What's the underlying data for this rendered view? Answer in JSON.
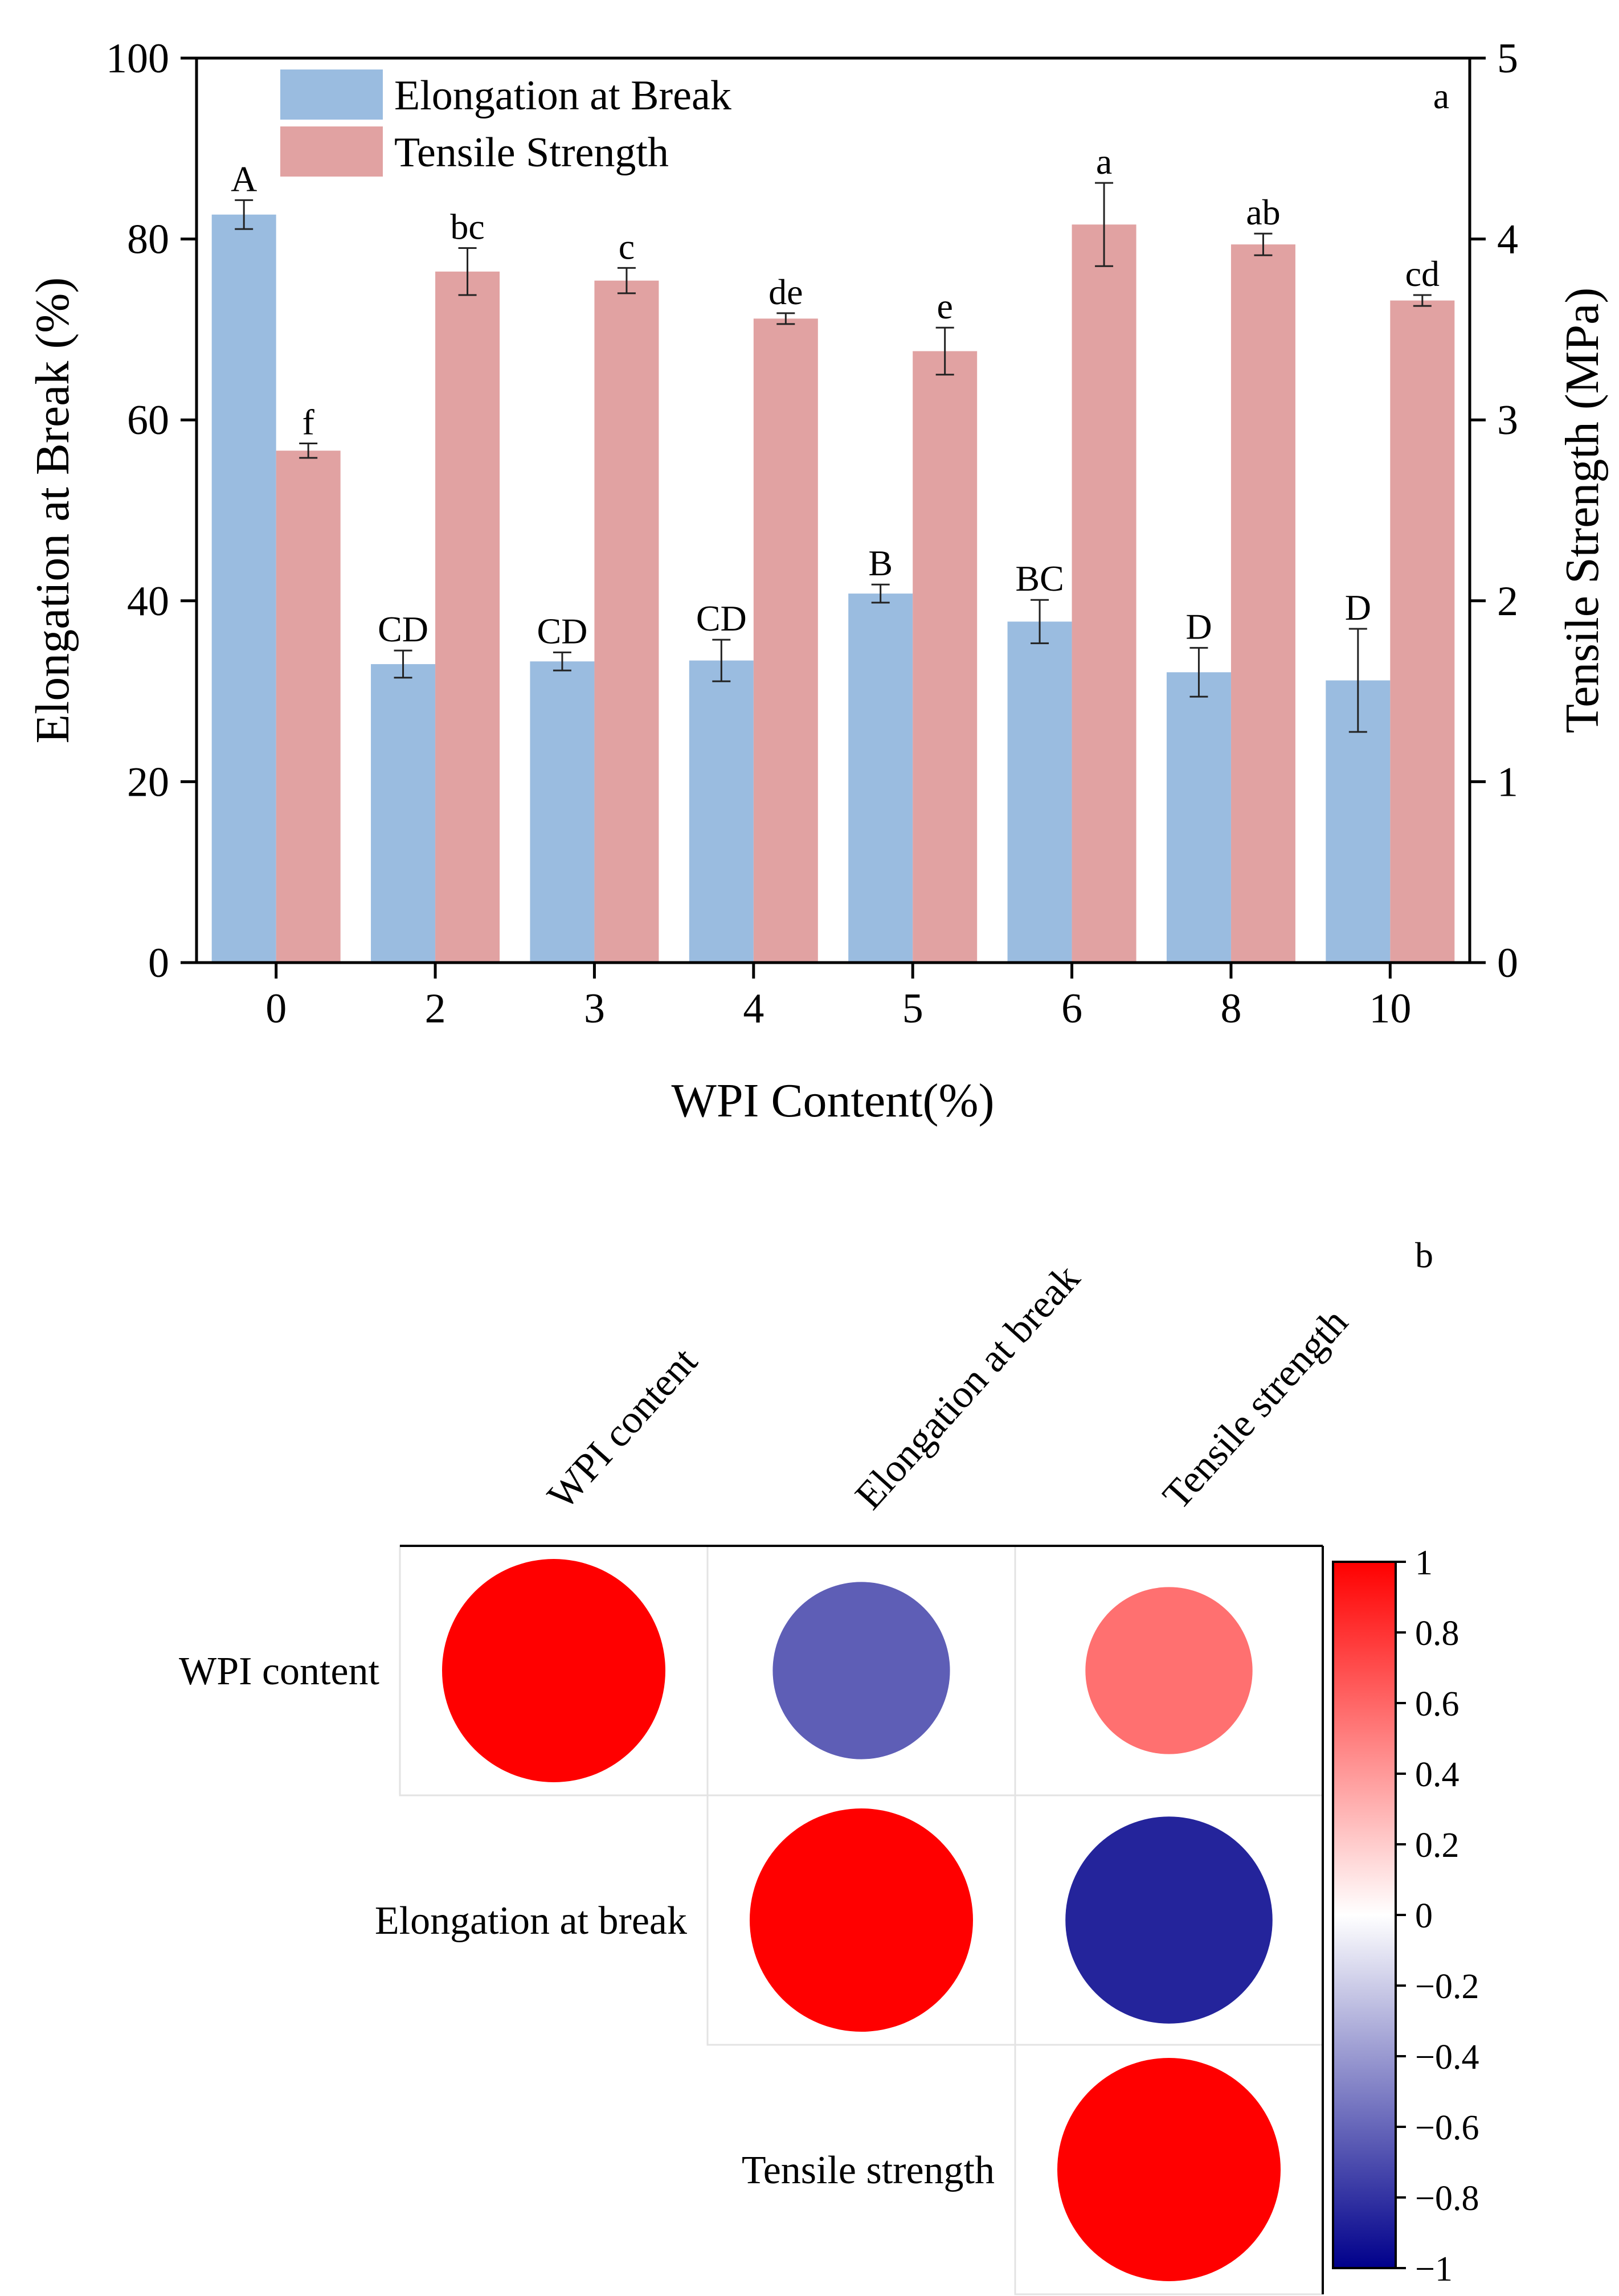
{
  "panel_a": {
    "chart_data": {
      "type": "bar",
      "panel_label": "a",
      "xlabel": "WPI Content(%)",
      "ylabel_left": "Elongation at Break (%)",
      "ylabel_right": "Tensile Strength (MPa)",
      "categories": [
        "0",
        "2",
        "3",
        "4",
        "5",
        "6",
        "8",
        "10"
      ],
      "ylim_left": [
        0,
        100
      ],
      "yticks_left": [
        "0",
        "20",
        "40",
        "60",
        "80",
        "100"
      ],
      "ylim_right": [
        0,
        5
      ],
      "yticks_right": [
        "0",
        "1",
        "2",
        "3",
        "4",
        "5"
      ],
      "legend_position": "top-left",
      "series": [
        {
          "name": "Elongation at Break",
          "axis": "left",
          "color": "#9ABCE0",
          "values": [
            82.7,
            33.0,
            33.3,
            33.4,
            40.8,
            37.7,
            32.1,
            31.2
          ],
          "errors": [
            1.6,
            1.5,
            1.0,
            2.3,
            1.0,
            2.4,
            2.7,
            5.7
          ],
          "labels": [
            "A",
            "CD",
            "CD",
            "CD",
            "B",
            "BC",
            "D",
            "D"
          ]
        },
        {
          "name": "Tensile Strength",
          "axis": "right",
          "color": "#E1A2A2",
          "values": [
            2.83,
            3.82,
            3.77,
            3.56,
            3.38,
            4.08,
            3.97,
            3.66
          ],
          "errors": [
            0.04,
            0.13,
            0.07,
            0.03,
            0.13,
            0.23,
            0.06,
            0.03
          ],
          "labels": [
            "f",
            "bc",
            "c",
            "de",
            "e",
            "a",
            "ab",
            "cd"
          ]
        }
      ]
    }
  },
  "panel_b": {
    "chart_data": {
      "type": "heatmap",
      "panel_label": "b",
      "variables": [
        "WPI content",
        "Elongation at break",
        "Tensile strength"
      ],
      "layout": "upper-triangle-circles",
      "matrix": [
        [
          1.0,
          -0.63,
          0.56
        ],
        [
          null,
          1.0,
          -0.86
        ],
        [
          null,
          null,
          1.0
        ]
      ],
      "colorbar": {
        "range": [
          -1,
          1
        ],
        "ticks": [
          "1",
          "0.8",
          "0.6",
          "0.4",
          "0.2",
          "0",
          "−0.2",
          "−0.4",
          "−0.6",
          "−0.8",
          "−1"
        ],
        "colors": {
          "low": "#00008B",
          "mid": "#FFFFFF",
          "high": "#FF0000"
        }
      }
    }
  }
}
